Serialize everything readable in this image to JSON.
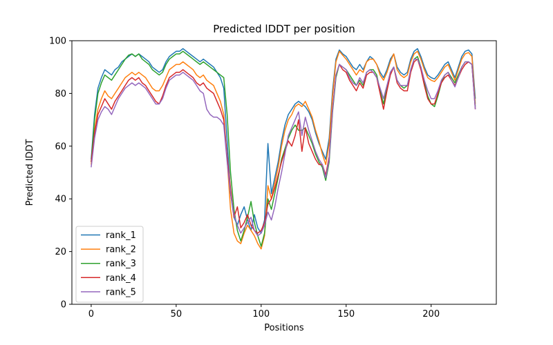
{
  "figure": {
    "background_color": "#ffffff",
    "spine_color": "#000000",
    "legend_border_color": "#cccccc",
    "legend_background_color": "#ffffff"
  },
  "chart_data": {
    "type": "line",
    "title": "Predicted lDDT per position",
    "xlabel": "Positions",
    "ylabel": "Predicted lDDT",
    "xlim": [
      -11.35,
      238.35
    ],
    "ylim": [
      0,
      100
    ],
    "xticks": [
      0,
      50,
      100,
      150,
      200
    ],
    "yticks": [
      0,
      20,
      40,
      60,
      80,
      100
    ],
    "grid": false,
    "legend_position": "lower-left",
    "line_width": 1.5,
    "x": [
      0,
      2,
      4,
      6,
      8,
      10,
      12,
      14,
      16,
      18,
      20,
      22,
      24,
      26,
      28,
      30,
      32,
      34,
      36,
      38,
      40,
      42,
      44,
      46,
      48,
      50,
      52,
      54,
      56,
      58,
      60,
      62,
      64,
      66,
      68,
      70,
      72,
      74,
      76,
      78,
      80,
      82,
      84,
      86,
      88,
      90,
      92,
      94,
      96,
      98,
      100,
      102,
      104,
      106,
      108,
      110,
      112,
      114,
      116,
      118,
      120,
      122,
      124,
      126,
      128,
      130,
      132,
      134,
      136,
      138,
      140,
      142,
      144,
      146,
      148,
      150,
      152,
      154,
      156,
      158,
      160,
      162,
      164,
      166,
      168,
      170,
      172,
      174,
      176,
      178,
      180,
      182,
      184,
      186,
      188,
      190,
      192,
      194,
      196,
      198,
      200,
      202,
      204,
      206,
      208,
      210,
      212,
      214,
      216,
      218,
      220,
      222,
      224,
      226
    ],
    "series": [
      {
        "name": "rank_1",
        "color": "#1f77b4",
        "values": [
          55,
          72,
          82,
          86,
          89,
          88,
          87,
          89,
          90,
          92,
          93,
          94,
          95,
          94,
          95,
          94,
          93,
          92,
          90,
          89,
          88,
          89,
          92,
          94,
          95,
          96,
          96,
          97,
          96,
          95,
          94,
          93,
          92,
          93,
          92,
          91,
          90,
          88,
          86,
          82,
          62,
          42,
          33,
          30,
          34,
          37,
          32,
          28,
          34,
          29,
          27,
          32,
          61,
          42,
          48,
          54,
          62,
          68,
          72,
          74,
          76,
          77,
          76,
          75,
          73,
          70,
          65,
          61,
          58,
          55,
          63,
          81,
          93,
          96.5,
          95,
          94,
          92,
          90,
          89,
          91,
          89,
          92,
          94,
          93,
          91,
          88,
          86,
          89,
          93,
          95,
          90,
          88,
          87,
          88,
          93,
          96,
          97,
          94,
          90,
          87,
          86,
          85.5,
          87,
          89,
          91,
          92,
          89,
          86,
          90,
          94,
          96,
          96.5,
          95,
          78
        ]
      },
      {
        "name": "rank_2",
        "color": "#ff7f0e",
        "values": [
          53,
          66,
          74,
          78,
          81,
          79,
          78,
          80,
          82,
          84,
          86,
          87,
          88,
          87,
          88,
          87,
          86,
          84,
          82,
          81,
          81,
          83,
          86,
          89,
          90,
          91,
          91,
          92,
          91,
          90,
          89,
          87,
          86,
          87,
          85,
          84,
          83,
          80,
          77,
          72,
          55,
          36,
          27,
          24,
          23,
          27,
          30,
          28,
          26,
          23,
          21,
          26,
          45,
          40,
          46,
          52,
          60,
          66,
          70,
          72,
          75,
          76,
          75,
          77,
          74,
          71,
          66,
          62,
          57,
          53,
          61,
          79,
          92,
          96,
          94.5,
          93,
          91,
          89,
          87,
          89,
          88,
          92,
          93,
          93,
          91,
          87,
          85,
          88,
          92,
          95,
          89,
          87,
          86,
          87,
          92,
          95,
          96,
          93,
          89,
          86,
          85,
          84.5,
          86,
          88,
          90,
          91,
          88,
          85,
          89,
          93,
          95,
          95.5,
          94,
          76
        ]
      },
      {
        "name": "rank_3",
        "color": "#2ca02c",
        "values": [
          54,
          70,
          80,
          84,
          87,
          86,
          85,
          87,
          89,
          91,
          93,
          94.5,
          95,
          94,
          95,
          93,
          92,
          91,
          89,
          88,
          87,
          88,
          91,
          93,
          94,
          95,
          95,
          96,
          95,
          94,
          93,
          92,
          91,
          92,
          91,
          90,
          89,
          88,
          87,
          86,
          72,
          50,
          36,
          28,
          24,
          28,
          33,
          39,
          31,
          26,
          22,
          27,
          40,
          36,
          42,
          48,
          55,
          59,
          63,
          66,
          68,
          66,
          66,
          67,
          64,
          61,
          57,
          54,
          52,
          47,
          54,
          73,
          86,
          91,
          90,
          89,
          87,
          85,
          83,
          85,
          83,
          88,
          89,
          89,
          87,
          81,
          76,
          82,
          88,
          90,
          85,
          83,
          82,
          83,
          89,
          93,
          94,
          90,
          84,
          79,
          76,
          75,
          79,
          84,
          87,
          88,
          86,
          84,
          87,
          90,
          92,
          92,
          91,
          75
        ]
      },
      {
        "name": "rank_4",
        "color": "#d62728",
        "values": [
          54,
          65,
          72,
          75,
          78,
          76,
          74,
          77,
          79,
          81,
          83,
          85,
          86,
          85,
          86,
          84,
          83,
          81,
          79,
          77,
          76,
          79,
          83,
          86,
          87,
          88,
          88,
          89,
          88,
          87,
          86,
          84,
          83,
          84,
          82,
          81,
          80,
          77,
          74,
          70,
          56,
          44,
          33,
          37,
          29,
          31,
          34,
          30,
          28,
          27,
          28,
          31,
          38,
          40,
          44,
          49,
          54,
          58,
          62,
          60,
          64,
          70,
          58,
          67,
          61,
          58,
          55,
          53,
          53,
          49,
          56,
          74,
          87,
          91,
          89,
          88,
          85,
          83,
          81,
          84,
          82,
          87,
          88,
          88,
          86,
          80,
          74,
          81,
          87,
          90,
          84,
          82,
          81,
          81,
          88,
          92,
          93,
          89,
          83,
          78,
          76,
          76,
          80,
          84,
          86,
          87,
          85,
          83,
          86,
          89,
          91,
          92,
          91,
          74
        ]
      },
      {
        "name": "rank_5",
        "color": "#9467bd",
        "values": [
          52,
          63,
          70,
          73,
          75,
          74,
          72,
          75,
          78,
          80,
          82,
          83,
          84,
          83,
          84,
          83,
          82,
          80,
          78,
          76,
          76,
          78,
          82,
          85,
          86,
          87,
          87,
          88,
          87,
          86,
          85,
          83,
          81,
          80,
          74,
          72,
          71,
          71,
          70,
          68,
          54,
          42,
          34,
          30,
          27,
          29,
          31,
          33,
          28,
          26,
          27,
          30,
          35,
          32,
          37,
          44,
          50,
          57,
          64,
          67,
          70,
          73,
          64,
          71,
          66,
          62,
          58,
          55,
          53,
          48,
          55,
          74,
          87,
          91,
          90,
          89,
          86,
          84,
          83,
          86,
          84,
          88,
          89,
          88,
          86,
          82,
          78,
          83,
          88,
          90,
          85,
          83,
          83,
          83,
          89,
          93,
          93,
          90,
          85,
          81,
          78,
          78,
          81,
          85,
          87,
          88,
          85,
          82.5,
          86,
          90,
          92,
          92,
          91,
          74
        ]
      }
    ]
  }
}
